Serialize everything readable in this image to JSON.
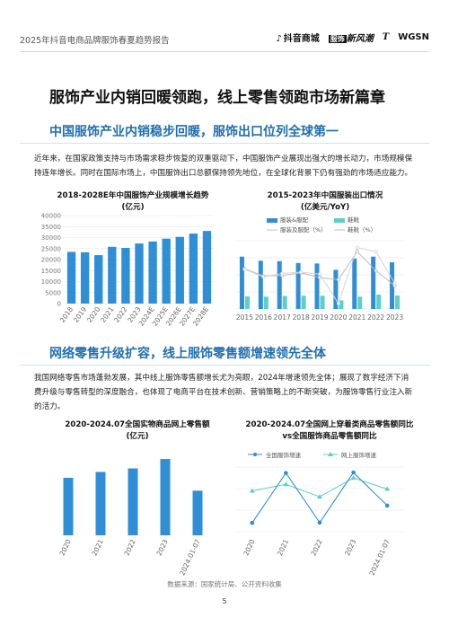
{
  "header": {
    "title": "2025年抖音电商品牌服饰春夏趋势报告",
    "logos": [
      "抖音商城",
      "服饰",
      "新风潮",
      "T",
      "WGSN"
    ]
  },
  "main_title": "服饰产业内销回暖领跑，线上零售领跑市场新篇章",
  "section1": {
    "heading": "中国服饰产业内销稳步回暖，服饰出口位列全球第一",
    "paragraph": "近年来，在国家政策支持与市场需求稳步恢复的双重驱动下，中国服饰产业展现出强大的增长动力，市场规模保持连年增长。同时在国际市场上，中国服饰出口总额保持领先地位，在全球化背景下仍有强劲的市场适应能力。"
  },
  "section2": {
    "heading": "网络零售升级扩容，线上服饰零售额增速领先全体",
    "paragraph": "我国网络零售市场蓬勃发展，其中线上服饰零售额增长尤为亮眼，2024年增速领先全体；展现了数字经济下消费升级与零售转型的深度融合，也体现了电商平台在技术创新、营销策略上的不断突破，为服饰零售行业注入新的活力。"
  },
  "charts_text": {
    "c1_title_1": "2018-2028E年中国服饰产业规模增长趋势",
    "c1_title_2": "(亿元)",
    "c2_title_1": "2015-2023年中国服装出口情况",
    "c2_title_2": "(亿美元/YoY)",
    "c3_title_1": "2020-2024.07全国实物商品网上零售额",
    "c3_title_2": "(亿元)",
    "c4_title_1": "2020-2024.07全国网上穿着类商品零售额同比",
    "c4_title_2": "vs全国服饰商品零售额同比"
  },
  "colors": {
    "bar": "#2f8fd6",
    "bar2": "#2f8fd6",
    "bar_light": "#5cd0c8",
    "line_gray": "#bfbfbf",
    "accent": "#1f6fb0"
  },
  "chart_data": [
    {
      "type": "bar",
      "title": "2018-2028E年中国服饰产业规模增长趋势",
      "ylabel": "亿元",
      "categories": [
        "2018",
        "2019",
        "2020",
        "2021",
        "2022",
        "2023",
        "2024E",
        "2025E",
        "2026E",
        "2027E",
        "2028E"
      ],
      "values": [
        23500,
        23300,
        22000,
        25800,
        25300,
        27300,
        28200,
        29500,
        30300,
        31800,
        33000
      ],
      "ylim": [
        0,
        40000
      ],
      "yticks": [
        0,
        5000,
        10000,
        15000,
        20000,
        25000,
        30000,
        35000,
        40000
      ],
      "grid": true
    },
    {
      "type": "bar",
      "title": "2015-2023年中国服装出口情况",
      "categories": [
        "2015",
        "2016",
        "2017",
        "2018",
        "2019",
        "2020",
        "2021",
        "2022",
        "2023"
      ],
      "series": [
        {
          "name": "服装&服配",
          "kind": "bar",
          "values": [
            23.0,
            21.2,
            21.0,
            20.2,
            20.0,
            17.2,
            22.1,
            23.0,
            20.5
          ]
        },
        {
          "name": "鞋靴",
          "kind": "bar",
          "values": [
            5.5,
            5.4,
            5.7,
            5.8,
            5.8,
            3.8,
            5.4,
            6.3,
            5.9
          ]
        },
        {
          "name": "服装及服配（%）",
          "kind": "line",
          "values": [
            4.5,
            -0.8,
            -0.5,
            1.5,
            -2.0,
            -3.5,
            17.0,
            3.0,
            -8.0
          ]
        },
        {
          "name": "鞋靴（%）",
          "kind": "line",
          "values": [
            4.0,
            -1.5,
            1.0,
            2.0,
            0.5,
            -21.0,
            20.0,
            17.0,
            -6.0
          ]
        }
      ],
      "legend": "top",
      "grid": true
    },
    {
      "type": "bar",
      "title": "2020-2024.07全国实物商品网上零售额",
      "ylabel": "亿元",
      "categories": [
        "2020",
        "2021",
        "2022",
        "2023",
        "2024.01-07"
      ],
      "values": [
        98000,
        108000,
        114000,
        130000,
        76000
      ],
      "ylim": [
        0,
        150000
      ]
    },
    {
      "type": "line",
      "title": "2020-2024.07全国网上穿着类商品零售额同比 vs全国服饰商品零售额同比",
      "categories": [
        "2020",
        "2021",
        "2022",
        "2023",
        "2024.01-07"
      ],
      "series": [
        {
          "name": "全国服饰增速",
          "values": [
            -6.6,
            12.7,
            -6.5,
            12.9,
            0.1
          ]
        },
        {
          "name": "网上服饰增速",
          "values": [
            5.8,
            8.3,
            3.5,
            10.8,
            6.5
          ]
        }
      ],
      "ylim": [
        -10,
        15
      ],
      "legend": "top"
    }
  ],
  "footer": {
    "source": "数据来源：国家统计局、公开资料收集",
    "page": "5"
  }
}
